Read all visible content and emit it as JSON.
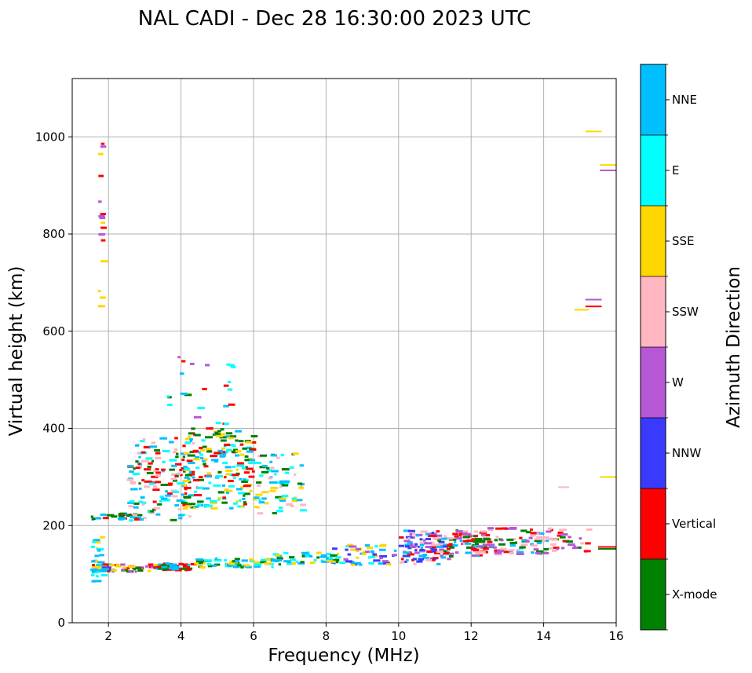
{
  "chart_data": {
    "type": "scatter",
    "title": "NAL CADI - Dec 28 16:30:00 2023 UTC",
    "xlabel": "Frequency (MHz)",
    "ylabel": "Virtual height (km)",
    "xlim": [
      1.0,
      16.0
    ],
    "ylim": [
      0,
      1120
    ],
    "xticks": [
      2,
      4,
      6,
      8,
      10,
      12,
      14,
      16
    ],
    "yticks": [
      0,
      200,
      400,
      600,
      800,
      1000
    ],
    "grid": true,
    "colorbar": {
      "label": "Azimuth Direction",
      "categories": [
        {
          "name": "X-mode",
          "color": "#008000"
        },
        {
          "name": "Vertical",
          "color": "#ff0000"
        },
        {
          "name": "NNW",
          "color": "#3a3aff"
        },
        {
          "name": "W",
          "color": "#b657d6"
        },
        {
          "name": "SSW",
          "color": "#ffb6c1"
        },
        {
          "name": "SSE",
          "color": "#ffd700"
        },
        {
          "name": "E",
          "color": "#00ffff"
        },
        {
          "name": "NNE",
          "color": "#00bfff"
        }
      ]
    },
    "segments": [
      {
        "f0": 15.15,
        "f1": 15.6,
        "h": 1011,
        "cat": "SSE"
      },
      {
        "f0": 15.55,
        "f1": 16.0,
        "h": 942,
        "cat": "SSE"
      },
      {
        "f0": 15.55,
        "f1": 16.0,
        "h": 931,
        "cat": "W"
      },
      {
        "f0": 15.15,
        "f1": 15.6,
        "h": 665,
        "cat": "W"
      },
      {
        "f0": 15.15,
        "f1": 15.6,
        "h": 651,
        "cat": "Vertical"
      },
      {
        "f0": 14.85,
        "f1": 15.25,
        "h": 644,
        "cat": "SSE"
      },
      {
        "f0": 15.55,
        "f1": 16.0,
        "h": 300,
        "cat": "SSE"
      },
      {
        "f0": 14.4,
        "f1": 14.7,
        "h": 279,
        "cat": "SSW"
      },
      {
        "f0": 15.5,
        "f1": 16.0,
        "h": 156,
        "cat": "Vertical"
      },
      {
        "f0": 15.5,
        "f1": 16.0,
        "h": 152,
        "cat": "X-mode"
      }
    ],
    "regions": [
      {
        "f": [
          1.5,
          2.2
        ],
        "h": [
          105,
          120
        ],
        "cats": [
          "Vertical",
          "NNE",
          "SSE",
          "NNW"
        ],
        "n": 30
      },
      {
        "f": [
          2.2,
          3.3
        ],
        "h": [
          105,
          120
        ],
        "cats": [
          "Vertical",
          "W",
          "SSE",
          "X-mode"
        ],
        "n": 30
      },
      {
        "f": [
          3.3,
          4.3
        ],
        "h": [
          108,
          122
        ],
        "cats": [
          "X-mode",
          "Vertical",
          "NNE"
        ],
        "n": 40
      },
      {
        "f": [
          4.3,
          6.5
        ],
        "h": [
          114,
          132
        ],
        "cats": [
          "NNE",
          "E",
          "X-mode",
          "SSE"
        ],
        "n": 70
      },
      {
        "f": [
          6.5,
          8.3
        ],
        "h": [
          120,
          145
        ],
        "cats": [
          "E",
          "SSE",
          "NNE",
          "X-mode"
        ],
        "n": 45
      },
      {
        "f": [
          8.0,
          10.0
        ],
        "h": [
          118,
          160
        ],
        "cats": [
          "NNW",
          "NNE",
          "W",
          "SSE",
          "E"
        ],
        "n": 55
      },
      {
        "f": [
          10.0,
          11.3
        ],
        "h": [
          120,
          190
        ],
        "cats": [
          "NNW",
          "NNE",
          "Vertical",
          "W",
          "SSW"
        ],
        "n": 90
      },
      {
        "f": [
          11.0,
          12.5
        ],
        "h": [
          130,
          190
        ],
        "cats": [
          "Vertical",
          "NNE",
          "SSW",
          "X-mode",
          "W"
        ],
        "n": 80
      },
      {
        "f": [
          12.0,
          14.0
        ],
        "h": [
          140,
          195
        ],
        "cats": [
          "Vertical",
          "X-mode",
          "SSW",
          "NNE",
          "W"
        ],
        "n": 90
      },
      {
        "f": [
          14.0,
          15.2
        ],
        "h": [
          145,
          195
        ],
        "cats": [
          "Vertical",
          "SSW",
          "W",
          "X-mode"
        ],
        "n": 30
      },
      {
        "f": [
          1.5,
          1.8
        ],
        "h": [
          85,
          185
        ],
        "cats": [
          "NNE",
          "E",
          "SSE"
        ],
        "n": 24
      },
      {
        "f": [
          1.5,
          2.8
        ],
        "h": [
          212,
          225
        ],
        "cats": [
          "Vertical",
          "NNE",
          "X-mode"
        ],
        "n": 30
      },
      {
        "f": [
          2.5,
          4.3
        ],
        "h": [
          210,
          380
        ],
        "cats": [
          "Vertical",
          "NNE",
          "E",
          "X-mode",
          "SSW"
        ],
        "n": 150
      },
      {
        "f": [
          4.0,
          6.0
        ],
        "h": [
          235,
          400
        ],
        "cats": [
          "X-mode",
          "NNE",
          "E",
          "Vertical",
          "SSE"
        ],
        "n": 190
      },
      {
        "f": [
          6.0,
          7.3
        ],
        "h": [
          225,
          350
        ],
        "cats": [
          "NNE",
          "E",
          "X-mode",
          "SSE",
          "SSW"
        ],
        "n": 70
      },
      {
        "f": [
          3.6,
          5.5
        ],
        "h": [
          400,
          550
        ],
        "cats": [
          "X-mode",
          "E",
          "NNE",
          "Vertical",
          "W"
        ],
        "n": 24
      },
      {
        "f": [
          1.7,
          1.8
        ],
        "h": [
          650,
          990
        ],
        "cats": [
          "SSE",
          "Vertical",
          "W"
        ],
        "n": 16
      }
    ]
  }
}
